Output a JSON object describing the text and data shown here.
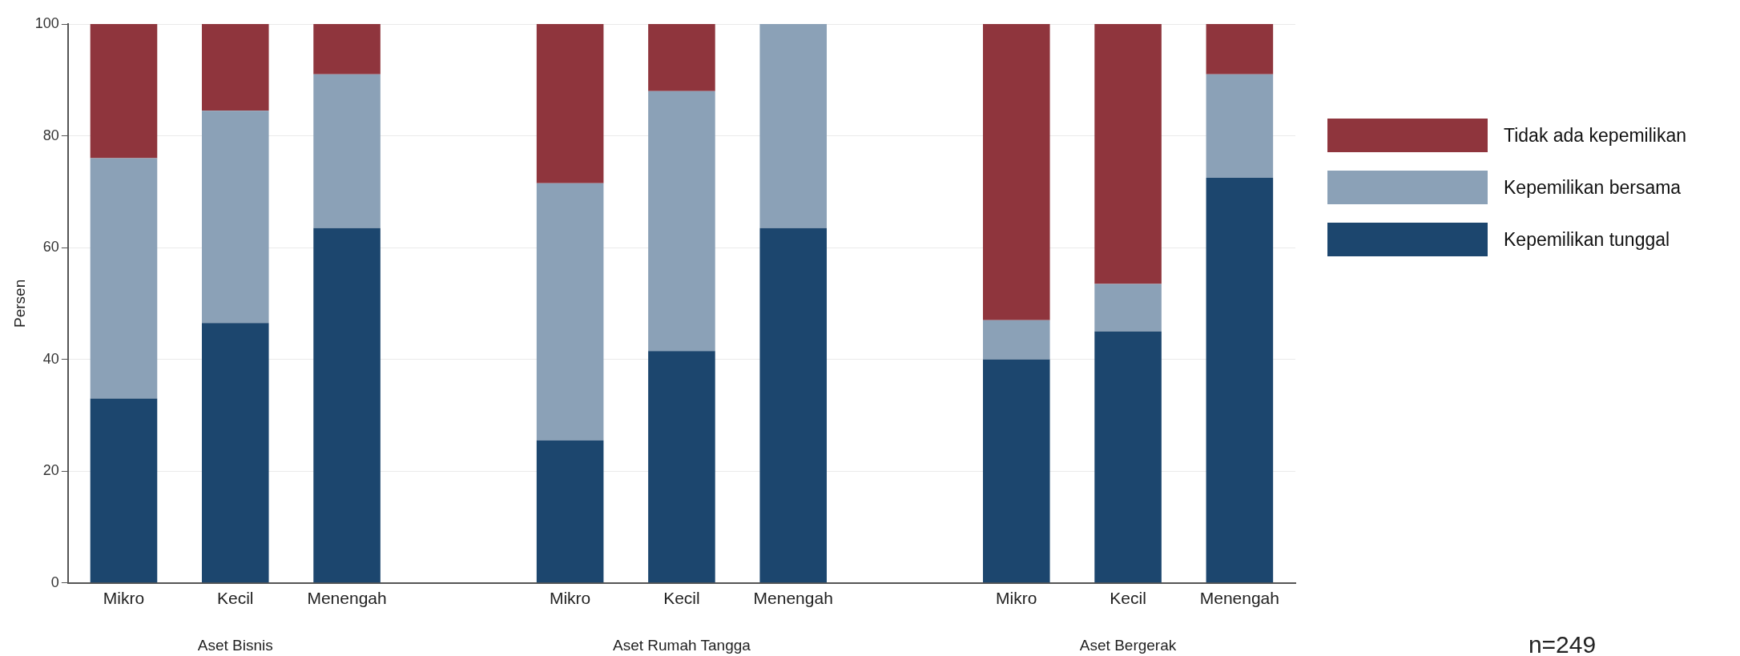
{
  "chart_data": {
    "type": "bar",
    "stacked": true,
    "ylabel": "Persen",
    "categories": [
      "Mikro",
      "Kecil",
      "Menengah",
      null,
      "Mikro",
      "Kecil",
      "Menengah",
      null,
      "Mikro",
      "Kecil",
      "Menengah"
    ],
    "series": [
      {
        "name": "Kepemilikan tunggal",
        "color": "#1c466e",
        "values": [
          33,
          46.5,
          63.5,
          null,
          25.5,
          41.5,
          63.5,
          null,
          40,
          45,
          72.5
        ]
      },
      {
        "name": "Kepemilikan bersama",
        "color": "#8ba1b7",
        "values": [
          43,
          38,
          27.5,
          null,
          46,
          46.5,
          36.5,
          null,
          7,
          8.5,
          18.5
        ]
      },
      {
        "name": "Tidak ada kepemilikan",
        "color": "#8f353d",
        "values": [
          24,
          15.5,
          9,
          null,
          28.5,
          12,
          0,
          null,
          53,
          46.5,
          9
        ]
      }
    ],
    "ylim": [
      0,
      100
    ],
    "yticks": [
      0,
      20,
      40,
      60,
      80,
      100
    ],
    "grid": "y",
    "legend": "right",
    "annotations": [
      "Aset Bisnis",
      "Aset Rumah Tangga",
      "Aset Bergerak",
      "n=249"
    ]
  }
}
